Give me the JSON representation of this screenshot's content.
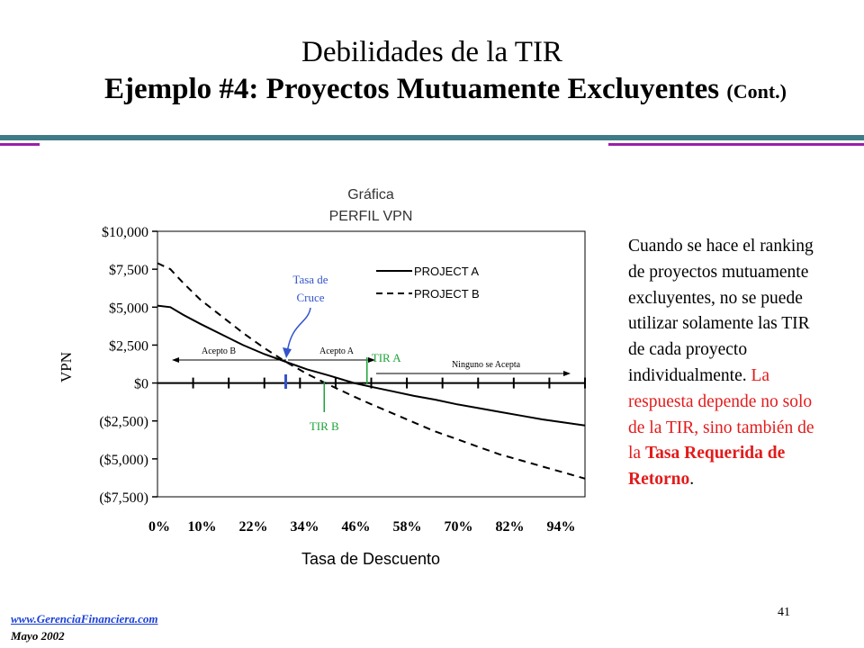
{
  "slide": {
    "title_line1": "Debilidades de la TIR",
    "title_line2": "Ejemplo #4: Proyectos Mutuamente Excluyentes",
    "title_cont": "(Cont.)",
    "side_text_black": "Cuando se hace el ranking de proyectos mutuamente excluyentes, no se puede utilizar solamente las TIR de cada proyecto individualmente.",
    "side_text_red": "La respuesta depende no solo de la TIR, sino también de la",
    "side_text_bold": "Tasa Requerida de Retorno",
    "side_text_end": ".",
    "footer_url": "www.GerenciaFinanciera.com",
    "footer_date": "Mayo 2002",
    "page_number": "41",
    "colors": {
      "rule_teal": "#3f7b86",
      "rule_purple": "#9b1fa9",
      "annotation_blue": "#3355cc",
      "annotation_green": "#1fa33a",
      "highlight_red": "#e31b1b"
    }
  },
  "chart_data": {
    "type": "line",
    "title": "Gráfica",
    "subtitle": "PERFIL VPN",
    "xlabel": "Tasa de Descuento",
    "ylabel": "VPN",
    "xlim": [
      0,
      100
    ],
    "ylim": [
      -7500,
      10000
    ],
    "x_ticks": [
      {
        "value": 0,
        "label": "0%"
      },
      {
        "value": 10,
        "label": "10%"
      },
      {
        "value": 22,
        "label": "22%"
      },
      {
        "value": 34,
        "label": "34%"
      },
      {
        "value": 46,
        "label": "46%"
      },
      {
        "value": 58,
        "label": "58%"
      },
      {
        "value": 70,
        "label": "70%"
      },
      {
        "value": 82,
        "label": "82%"
      },
      {
        "value": 94,
        "label": "94%"
      }
    ],
    "y_ticks": [
      {
        "value": 10000,
        "label": "$10,000"
      },
      {
        "value": 7500,
        "label": "$7,500"
      },
      {
        "value": 5000,
        "label": "$5,000"
      },
      {
        "value": 2500,
        "label": "$2,500"
      },
      {
        "value": 0,
        "label": "$0"
      },
      {
        "value": -2500,
        "label": "($2,500)"
      },
      {
        "value": -5000,
        "label": "($5,000)"
      },
      {
        "value": -7500,
        "label": "($7,500)"
      }
    ],
    "series": [
      {
        "name": "PROJECT A",
        "style": "solid",
        "x": [
          0,
          3,
          6,
          10,
          15,
          20,
          25,
          30,
          35,
          40,
          46,
          50,
          55,
          60,
          65,
          70,
          75,
          80,
          85,
          90,
          95,
          100
        ],
        "y": [
          5100,
          5000,
          4500,
          3900,
          3200,
          2500,
          1900,
          1400,
          900,
          500,
          0,
          -250,
          -550,
          -850,
          -1100,
          -1400,
          -1650,
          -1900,
          -2150,
          -2400,
          -2600,
          -2800
        ]
      },
      {
        "name": "PROJECT B",
        "style": "dashed",
        "x": [
          0,
          3,
          6,
          10,
          15,
          20,
          25,
          30,
          35,
          40,
          46,
          50,
          55,
          60,
          65,
          70,
          75,
          80,
          85,
          90,
          95,
          100
        ],
        "y": [
          7900,
          7500,
          6600,
          5500,
          4400,
          3300,
          2300,
          1400,
          600,
          -100,
          -900,
          -1400,
          -2000,
          -2600,
          -3200,
          -3700,
          -4200,
          -4700,
          -5100,
          -5500,
          -5900,
          -6300
        ]
      }
    ],
    "annotations": {
      "tasa_cruce_label_line1": "Tasa de",
      "tasa_cruce_label_line2": "Cruce",
      "tasa_cruce_x": 30,
      "acepto_b": "Acepto B",
      "acepto_a": "Acepto A",
      "ninguno": "Ninguno se Acepta",
      "tir_a": "TIR A",
      "tir_a_x": 49,
      "tir_b": "TIR B",
      "tir_b_x": 39
    },
    "grid": false
  }
}
